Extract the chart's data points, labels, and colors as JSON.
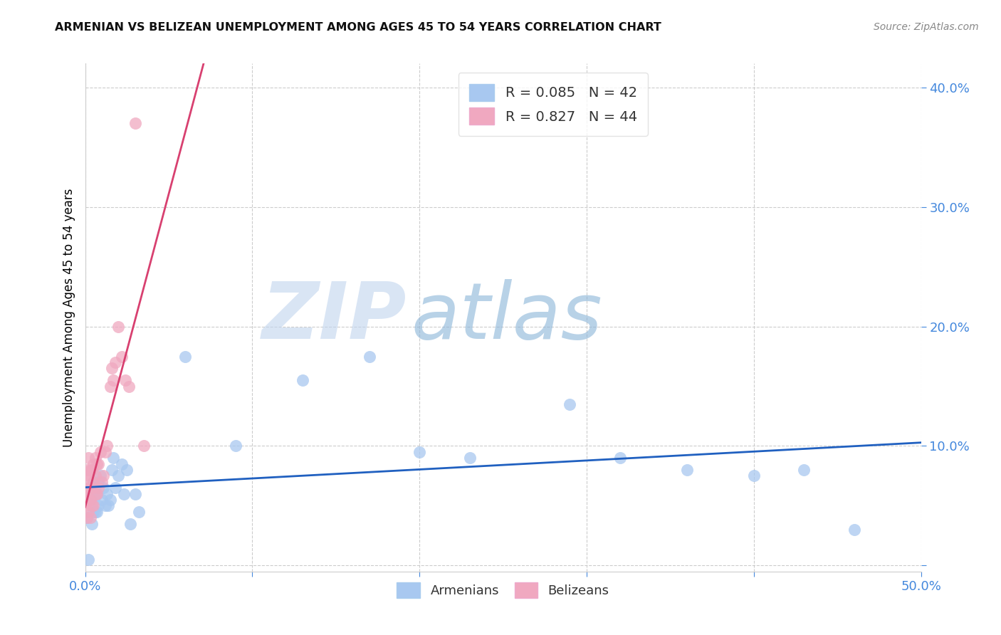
{
  "title": "ARMENIAN VS BELIZEAN UNEMPLOYMENT AMONG AGES 45 TO 54 YEARS CORRELATION CHART",
  "source": "Source: ZipAtlas.com",
  "ylabel": "Unemployment Among Ages 45 to 54 years",
  "watermark_part1": "ZIP",
  "watermark_part2": "atlas",
  "xlim": [
    0.0,
    0.5
  ],
  "ylim": [
    -0.005,
    0.42
  ],
  "xticks": [
    0.0,
    0.1,
    0.2,
    0.3,
    0.4,
    0.5
  ],
  "yticks": [
    0.0,
    0.1,
    0.2,
    0.3,
    0.4
  ],
  "ytick_labels": [
    "",
    "10.0%",
    "20.0%",
    "30.0%",
    "40.0%"
  ],
  "xtick_labels": [
    "0.0%",
    "",
    "",
    "",
    "",
    "50.0%"
  ],
  "armenian_color": "#a8c8f0",
  "belizean_color": "#f0a8c0",
  "armenian_line_color": "#2060c0",
  "belizean_line_color": "#d84070",
  "legend_armenian_R": "0.085",
  "legend_armenian_N": "42",
  "legend_belizean_R": "0.827",
  "legend_belizean_N": "44",
  "armenian_scatter_x": [
    0.001,
    0.002,
    0.003,
    0.004,
    0.004,
    0.005,
    0.005,
    0.006,
    0.006,
    0.007,
    0.007,
    0.008,
    0.008,
    0.009,
    0.01,
    0.011,
    0.012,
    0.013,
    0.014,
    0.015,
    0.016,
    0.017,
    0.018,
    0.02,
    0.022,
    0.023,
    0.025,
    0.027,
    0.03,
    0.032,
    0.06,
    0.09,
    0.13,
    0.17,
    0.2,
    0.23,
    0.29,
    0.32,
    0.36,
    0.4,
    0.43,
    0.46
  ],
  "armenian_scatter_y": [
    0.04,
    0.005,
    0.055,
    0.06,
    0.035,
    0.07,
    0.045,
    0.065,
    0.045,
    0.06,
    0.045,
    0.07,
    0.05,
    0.075,
    0.055,
    0.065,
    0.05,
    0.06,
    0.05,
    0.055,
    0.08,
    0.09,
    0.065,
    0.075,
    0.085,
    0.06,
    0.08,
    0.035,
    0.06,
    0.045,
    0.175,
    0.1,
    0.155,
    0.175,
    0.095,
    0.09,
    0.135,
    0.09,
    0.08,
    0.075,
    0.08,
    0.03
  ],
  "belizean_scatter_x": [
    0.0,
    0.0,
    0.001,
    0.001,
    0.001,
    0.001,
    0.001,
    0.002,
    0.002,
    0.002,
    0.002,
    0.002,
    0.003,
    0.003,
    0.003,
    0.003,
    0.004,
    0.004,
    0.004,
    0.005,
    0.005,
    0.005,
    0.006,
    0.006,
    0.006,
    0.007,
    0.007,
    0.008,
    0.008,
    0.009,
    0.01,
    0.011,
    0.012,
    0.013,
    0.015,
    0.016,
    0.017,
    0.018,
    0.02,
    0.022,
    0.024,
    0.026,
    0.03,
    0.035
  ],
  "belizean_scatter_y": [
    0.05,
    0.06,
    0.04,
    0.055,
    0.065,
    0.075,
    0.08,
    0.045,
    0.055,
    0.065,
    0.075,
    0.09,
    0.04,
    0.055,
    0.065,
    0.08,
    0.05,
    0.065,
    0.08,
    0.05,
    0.07,
    0.085,
    0.06,
    0.075,
    0.09,
    0.06,
    0.085,
    0.065,
    0.085,
    0.095,
    0.07,
    0.075,
    0.095,
    0.1,
    0.15,
    0.165,
    0.155,
    0.17,
    0.2,
    0.175,
    0.155,
    0.15,
    0.37,
    0.1
  ],
  "background_color": "#ffffff",
  "grid_color": "#cccccc"
}
